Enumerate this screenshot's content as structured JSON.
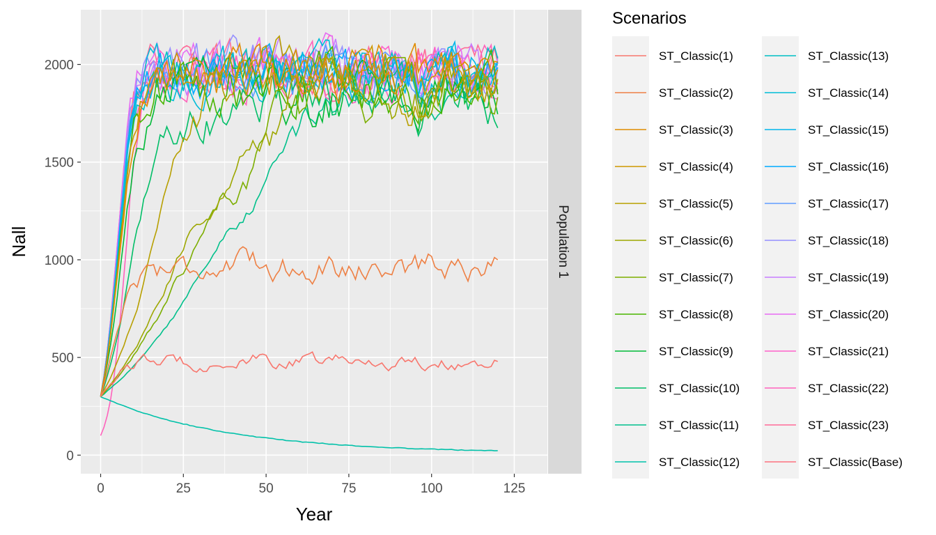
{
  "chart_data": {
    "type": "line",
    "xlabel": "Year",
    "ylabel": "Nall",
    "facet_label": "Population 1",
    "legend_title": "Scenarios",
    "legend_position": "right",
    "grid": true,
    "xlim": [
      -6,
      135
    ],
    "ylim": [
      -95,
      2280
    ],
    "x_ticks": [
      0,
      25,
      50,
      75,
      100,
      125
    ],
    "y_ticks": [
      0,
      500,
      1000,
      1500,
      2000
    ],
    "x_tick_labels": [
      "0",
      "25",
      "50",
      "75",
      "100",
      "125"
    ],
    "y_tick_labels": [
      "0",
      "500",
      "1000",
      "1500",
      "2000"
    ],
    "series": [
      {
        "name": "ST_Classic(1)",
        "color": "#F8766D",
        "start": 300,
        "rate": 0.25,
        "k": 480,
        "noise": 30
      },
      {
        "name": "ST_Classic(2)",
        "color": "#EE8044",
        "start": 300,
        "rate": 0.3,
        "k": 970,
        "noise": 55
      },
      {
        "name": "ST_Classic(3)",
        "color": "#E08B00",
        "start": 300,
        "rate": 0.34,
        "k": 1950,
        "noise": 100
      },
      {
        "name": "ST_Classic(4)",
        "color": "#CE9700",
        "start": 300,
        "rate": 0.34,
        "k": 1950,
        "noise": 100
      },
      {
        "name": "ST_Classic(5)",
        "color": "#B79F00",
        "start": 300,
        "rate": 0.12,
        "k": 1950,
        "noise": 100
      },
      {
        "name": "ST_Classic(6)",
        "color": "#9DA700",
        "start": 300,
        "rate": 0.075,
        "k": 1850,
        "noise": 100
      },
      {
        "name": "ST_Classic(7)",
        "color": "#7CAE00",
        "start": 300,
        "rate": 0.065,
        "k": 1850,
        "noise": 100
      },
      {
        "name": "ST_Classic(8)",
        "color": "#49B500",
        "start": 300,
        "rate": 0.34,
        "k": 1900,
        "noise": 110
      },
      {
        "name": "ST_Classic(9)",
        "color": "#00BA38",
        "start": 300,
        "rate": 0.3,
        "k": 1850,
        "noise": 110
      },
      {
        "name": "ST_Classic(10)",
        "color": "#00BE67",
        "start": 300,
        "rate": 0.2,
        "k": 1800,
        "noise": 100
      },
      {
        "name": "ST_Classic(11)",
        "color": "#00C08B",
        "start": 300,
        "rate": 0.055,
        "k": 1830,
        "noise": 70
      },
      {
        "name": "ST_Classic(12)",
        "color": "#00C1A9",
        "start": 300,
        "decline": true,
        "end": 10
      },
      {
        "name": "ST_Classic(13)",
        "color": "#00BFC4",
        "start": 300,
        "rate": 0.36,
        "k": 1950,
        "noise": 100
      },
      {
        "name": "ST_Classic(14)",
        "color": "#00BCD8",
        "start": 300,
        "rate": 0.37,
        "k": 1950,
        "noise": 100
      },
      {
        "name": "ST_Classic(15)",
        "color": "#00B6EB",
        "start": 300,
        "rate": 0.37,
        "k": 1950,
        "noise": 100
      },
      {
        "name": "ST_Classic(16)",
        "color": "#00A9FF",
        "start": 300,
        "rate": 0.38,
        "k": 1950,
        "noise": 100
      },
      {
        "name": "ST_Classic(17)",
        "color": "#619CFF",
        "start": 300,
        "rate": 0.38,
        "k": 1950,
        "noise": 100
      },
      {
        "name": "ST_Classic(18)",
        "color": "#9590FF",
        "start": 300,
        "rate": 0.39,
        "k": 1970,
        "noise": 100
      },
      {
        "name": "ST_Classic(19)",
        "color": "#C77CFF",
        "start": 300,
        "rate": 0.39,
        "k": 1990,
        "noise": 100
      },
      {
        "name": "ST_Classic(20)",
        "color": "#E76BF3",
        "start": 300,
        "rate": 0.4,
        "k": 1990,
        "noise": 100
      },
      {
        "name": "ST_Classic(21)",
        "color": "#FF61C9",
        "start": 300,
        "rate": 0.4,
        "k": 1970,
        "noise": 100
      },
      {
        "name": "ST_Classic(22)",
        "color": "#FF62BC",
        "start": 100,
        "rate": 0.45,
        "k": 1950,
        "noise": 100
      },
      {
        "name": "ST_Classic(23)",
        "color": "#FF6A98",
        "start": 300,
        "rate": 0.4,
        "k": 1960,
        "noise": 100
      },
      {
        "name": "ST_Classic(Base)",
        "color": "#FC717F",
        "start": 300,
        "rate": 0.4,
        "k": 1960,
        "noise": 100
      }
    ]
  }
}
